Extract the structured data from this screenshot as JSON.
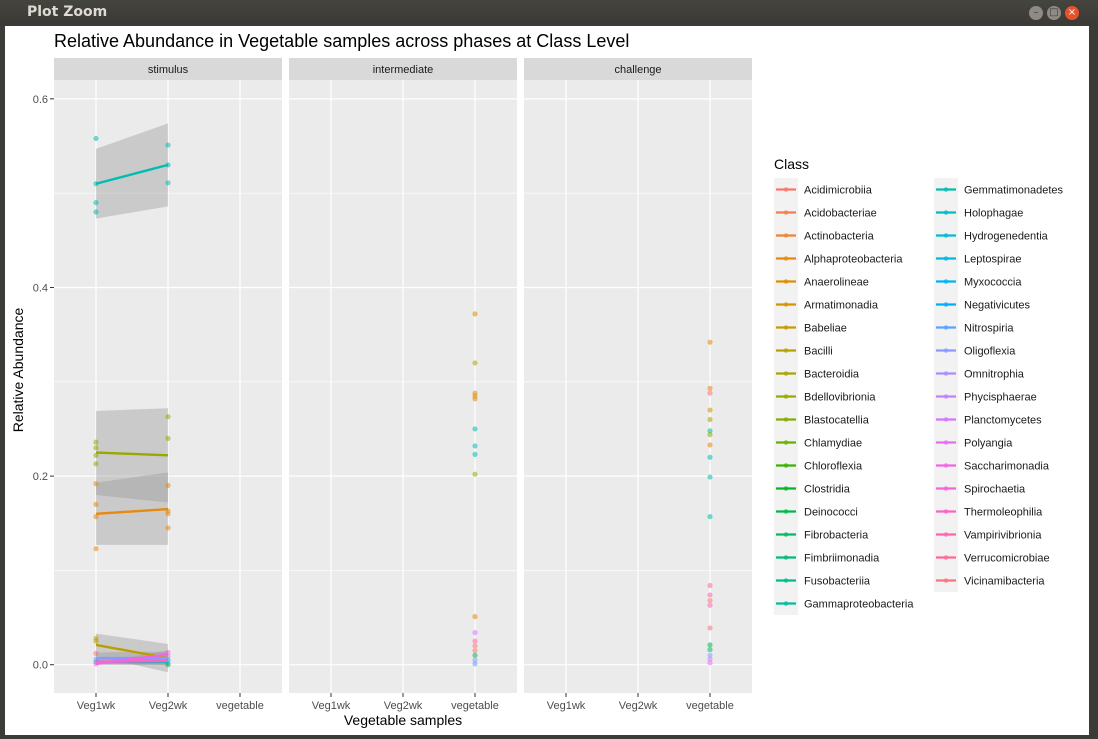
{
  "window": {
    "title": "Plot Zoom",
    "buttons": {
      "minimize": "–",
      "maximize": "□",
      "close": "×"
    }
  },
  "colors": {
    "panel_bg": "#ebebeb",
    "strip_bg": "#d9d9d9",
    "grid": "#ffffff",
    "ribbon": "#999999"
  },
  "chart_data": {
    "type": "line",
    "title": "Relative Abundance in Vegetable samples across phases at Class Level",
    "xlabel": "Vegetable samples",
    "ylabel": "Relative Abundance",
    "ylim": [
      -0.03,
      0.62
    ],
    "yticks": [
      0.0,
      0.2,
      0.4,
      0.6
    ],
    "ytick_labels": [
      "0.0",
      "0.2",
      "0.4",
      "0.6"
    ],
    "categories": [
      "Veg1wk",
      "Veg2wk",
      "vegetable"
    ],
    "grid": true,
    "legend_placement": "right",
    "legend_title": "Class",
    "legend": [
      {
        "label": "Acidimicrobiia",
        "color": "#F8766D"
      },
      {
        "label": "Acidobacteriae",
        "color": "#F47C55"
      },
      {
        "label": "Actinobacteria",
        "color": "#EE8332"
      },
      {
        "label": "Alphaproteobacteria",
        "color": "#E7890D"
      },
      {
        "label": "Anaerolineae",
        "color": "#DE8E00"
      },
      {
        "label": "Armatimonadia",
        "color": "#D49400"
      },
      {
        "label": "Babeliae",
        "color": "#C89A00"
      },
      {
        "label": "Bacilli",
        "color": "#BA9F00"
      },
      {
        "label": "Bacteroidia",
        "color": "#AAA400"
      },
      {
        "label": "Bdellovibrionia",
        "color": "#98A800"
      },
      {
        "label": "Blastocatellia",
        "color": "#83AC00"
      },
      {
        "label": "Chlamydiae",
        "color": "#68B000"
      },
      {
        "label": "Chloroflexia",
        "color": "#3BB300"
      },
      {
        "label": "Clostridia",
        "color": "#00B626"
      },
      {
        "label": "Deinococci",
        "color": "#00B849"
      },
      {
        "label": "Fibrobacteria",
        "color": "#00BA62"
      },
      {
        "label": "Fimbriimonadia",
        "color": "#00BB78"
      },
      {
        "label": "Fusobacteriia",
        "color": "#00BC8C"
      },
      {
        "label": "Gammaproteobacteria",
        "color": "#00BD9F"
      },
      {
        "label": "Gemmatimonadetes",
        "color": "#00BDB1"
      },
      {
        "label": "Holophagae",
        "color": "#00BCC3"
      },
      {
        "label": "Hydrogenedentia",
        "color": "#00BAD3"
      },
      {
        "label": "Leptospirae",
        "color": "#00B7E2"
      },
      {
        "label": "Myxococcia",
        "color": "#00B2F0"
      },
      {
        "label": "Negativicutes",
        "color": "#00ACFC"
      },
      {
        "label": "Nitrospiria",
        "color": "#5CA2FF"
      },
      {
        "label": "Oligoflexia",
        "color": "#8A98FF"
      },
      {
        "label": "Omnitrophia",
        "color": "#AA8CFF"
      },
      {
        "label": "Phycisphaerae",
        "color": "#C37FFF"
      },
      {
        "label": "Planctomycetes",
        "color": "#D774FD"
      },
      {
        "label": "Polyangia",
        "color": "#E76BF3"
      },
      {
        "label": "Saccharimonadia",
        "color": "#F364E5"
      },
      {
        "label": "Spirochaetia",
        "color": "#FC61D4"
      },
      {
        "label": "Thermoleophilia",
        "color": "#FF61C1"
      },
      {
        "label": "Vampirivibrionia",
        "color": "#FF64AC"
      },
      {
        "label": "Verrucomicrobiae",
        "color": "#FF6A95"
      },
      {
        "label": "Vicinamibacteria",
        "color": "#FC717F"
      }
    ],
    "facets": [
      {
        "label": "stimulus",
        "points": [
          {
            "x": "Veg1wk",
            "y": 0.558,
            "color": "#00BDB1"
          },
          {
            "x": "Veg1wk",
            "y": 0.51,
            "color": "#00BDB1"
          },
          {
            "x": "Veg1wk",
            "y": 0.49,
            "color": "#00BDB1"
          },
          {
            "x": "Veg1wk",
            "y": 0.48,
            "color": "#00BDB1"
          },
          {
            "x": "Veg2wk",
            "y": 0.551,
            "color": "#00BDB1"
          },
          {
            "x": "Veg2wk",
            "y": 0.53,
            "color": "#00BDB1"
          },
          {
            "x": "Veg2wk",
            "y": 0.511,
            "color": "#00BDB1"
          },
          {
            "x": "Veg1wk",
            "y": 0.236,
            "color": "#98A800"
          },
          {
            "x": "Veg1wk",
            "y": 0.23,
            "color": "#98A800"
          },
          {
            "x": "Veg1wk",
            "y": 0.222,
            "color": "#98A800"
          },
          {
            "x": "Veg1wk",
            "y": 0.213,
            "color": "#98A800"
          },
          {
            "x": "Veg2wk",
            "y": 0.263,
            "color": "#98A800"
          },
          {
            "x": "Veg2wk",
            "y": 0.24,
            "color": "#98A800"
          },
          {
            "x": "Veg1wk",
            "y": 0.192,
            "color": "#E7890D"
          },
          {
            "x": "Veg1wk",
            "y": 0.17,
            "color": "#E7890D"
          },
          {
            "x": "Veg1wk",
            "y": 0.157,
            "color": "#E7890D"
          },
          {
            "x": "Veg1wk",
            "y": 0.123,
            "color": "#E7890D"
          },
          {
            "x": "Veg2wk",
            "y": 0.19,
            "color": "#E7890D"
          },
          {
            "x": "Veg2wk",
            "y": 0.163,
            "color": "#E7890D"
          },
          {
            "x": "Veg2wk",
            "y": 0.16,
            "color": "#E7890D"
          },
          {
            "x": "Veg2wk",
            "y": 0.145,
            "color": "#E7890D"
          },
          {
            "x": "Veg1wk",
            "y": 0.028,
            "color": "#BA9F00"
          },
          {
            "x": "Veg1wk",
            "y": 0.025,
            "color": "#BA9F00"
          },
          {
            "x": "Veg1wk",
            "y": 0.012,
            "color": "#F8766D"
          },
          {
            "x": "Veg1wk",
            "y": 0.006,
            "color": "#8A98FF"
          },
          {
            "x": "Veg1wk",
            "y": 0.003,
            "color": "#00B2F0"
          },
          {
            "x": "Veg1wk",
            "y": 0.001,
            "color": "#FF61C1"
          },
          {
            "x": "Veg2wk",
            "y": 0.013,
            "color": "#FC61D4"
          },
          {
            "x": "Veg2wk",
            "y": 0.009,
            "color": "#C37FFF"
          },
          {
            "x": "Veg2wk",
            "y": 0.005,
            "color": "#00BCC3"
          },
          {
            "x": "Veg2wk",
            "y": 0.002,
            "color": "#5CA2FF"
          },
          {
            "x": "Veg2wk",
            "y": 0.0,
            "color": "#00B849"
          }
        ],
        "lines": [
          {
            "color": "#00BDB1",
            "y": [
              0.51,
              0.53
            ],
            "band_low": [
              0.473,
              0.486
            ],
            "band_high": [
              0.547,
              0.574
            ]
          },
          {
            "color": "#98A800",
            "y": [
              0.225,
              0.222
            ],
            "band_low": [
              0.18,
              0.172
            ],
            "band_high": [
              0.269,
              0.272
            ]
          },
          {
            "color": "#E7890D",
            "y": [
              0.16,
              0.165
            ],
            "band_low": [
              0.127,
              0.127
            ],
            "band_high": [
              0.193,
              0.204
            ]
          },
          {
            "color": "#BA9F00",
            "y": [
              0.021,
              0.007
            ],
            "band_low": [
              0.009,
              -0.008
            ],
            "band_high": [
              0.033,
              0.022
            ]
          },
          {
            "color": "#8A98FF",
            "y": [
              0.007,
              0.007
            ],
            "band_low": [
              0.001,
              0.0
            ],
            "band_high": [
              0.013,
              0.014
            ]
          },
          {
            "color": "#00BCC3",
            "y": [
              0.003,
              0.003
            ],
            "band_low": [
              0.0,
              0.0
            ],
            "band_high": [
              0.006,
              0.006
            ]
          },
          {
            "color": "#FF61C1",
            "y": [
              0.003,
              0.004
            ],
            "band_low": [
              0.0,
              0.0
            ],
            "band_high": [
              0.006,
              0.008
            ]
          },
          {
            "color": "#F364E5",
            "y": [
              0.001,
              0.011
            ],
            "band_low": [
              0.0,
              0.007
            ],
            "band_high": [
              0.002,
              0.015
            ]
          }
        ]
      },
      {
        "label": "intermediate",
        "points": [
          {
            "x": "vegetable",
            "y": 0.372,
            "color": "#DE8E00"
          },
          {
            "x": "vegetable",
            "y": 0.32,
            "color": "#AAA400"
          },
          {
            "x": "vegetable",
            "y": 0.288,
            "color": "#E7890D"
          },
          {
            "x": "vegetable",
            "y": 0.285,
            "color": "#DE8E00"
          },
          {
            "x": "vegetable",
            "y": 0.282,
            "color": "#D49400"
          },
          {
            "x": "vegetable",
            "y": 0.25,
            "color": "#00BDB1"
          },
          {
            "x": "vegetable",
            "y": 0.232,
            "color": "#00BCC3"
          },
          {
            "x": "vegetable",
            "y": 0.223,
            "color": "#00BDB1"
          },
          {
            "x": "vegetable",
            "y": 0.202,
            "color": "#98A800"
          },
          {
            "x": "vegetable",
            "y": 0.051,
            "color": "#E7890D"
          },
          {
            "x": "vegetable",
            "y": 0.034,
            "color": "#D774FD"
          },
          {
            "x": "vegetable",
            "y": 0.025,
            "color": "#FF64AC"
          },
          {
            "x": "vegetable",
            "y": 0.02,
            "color": "#F8766D"
          },
          {
            "x": "vegetable",
            "y": 0.015,
            "color": "#FC717F"
          },
          {
            "x": "vegetable",
            "y": 0.01,
            "color": "#00B849"
          },
          {
            "x": "vegetable",
            "y": 0.005,
            "color": "#8A98FF"
          },
          {
            "x": "vegetable",
            "y": 0.001,
            "color": "#5CA2FF"
          }
        ],
        "lines": []
      },
      {
        "label": "challenge",
        "points": [
          {
            "x": "vegetable",
            "y": 0.342,
            "color": "#DE8E00"
          },
          {
            "x": "vegetable",
            "y": 0.293,
            "color": "#E7890D"
          },
          {
            "x": "vegetable",
            "y": 0.288,
            "color": "#FC717F"
          },
          {
            "x": "vegetable",
            "y": 0.27,
            "color": "#D49400"
          },
          {
            "x": "vegetable",
            "y": 0.26,
            "color": "#AAA400"
          },
          {
            "x": "vegetable",
            "y": 0.248,
            "color": "#00BD9F"
          },
          {
            "x": "vegetable",
            "y": 0.244,
            "color": "#98A800"
          },
          {
            "x": "vegetable",
            "y": 0.233,
            "color": "#E7890D"
          },
          {
            "x": "vegetable",
            "y": 0.22,
            "color": "#00BCC3"
          },
          {
            "x": "vegetable",
            "y": 0.199,
            "color": "#00BDB1"
          },
          {
            "x": "vegetable",
            "y": 0.157,
            "color": "#00BDB1"
          },
          {
            "x": "vegetable",
            "y": 0.084,
            "color": "#FF6A95"
          },
          {
            "x": "vegetable",
            "y": 0.074,
            "color": "#FF64AC"
          },
          {
            "x": "vegetable",
            "y": 0.068,
            "color": "#F8766D"
          },
          {
            "x": "vegetable",
            "y": 0.063,
            "color": "#FF61C1"
          },
          {
            "x": "vegetable",
            "y": 0.039,
            "color": "#FC717F"
          },
          {
            "x": "vegetable",
            "y": 0.021,
            "color": "#00B849"
          },
          {
            "x": "vegetable",
            "y": 0.016,
            "color": "#00BA62"
          },
          {
            "x": "vegetable",
            "y": 0.01,
            "color": "#8A98FF"
          },
          {
            "x": "vegetable",
            "y": 0.006,
            "color": "#C37FFF"
          },
          {
            "x": "vegetable",
            "y": 0.002,
            "color": "#E76BF3"
          }
        ],
        "lines": []
      }
    ]
  }
}
